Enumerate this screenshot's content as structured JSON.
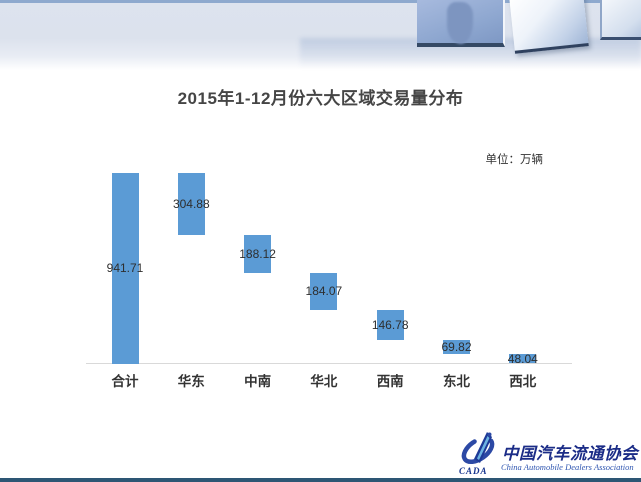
{
  "slide": {
    "title": "2015年1-12月份六大区域交易量分布",
    "unit_label": "单位：万辆"
  },
  "chart_data": {
    "type": "bar",
    "subtype": "waterfall",
    "title": "2015年1-12月份六大区域交易量分布",
    "unit": "万辆",
    "categories": [
      "合计",
      "华东",
      "中南",
      "华北",
      "西南",
      "东北",
      "西北"
    ],
    "values": [
      941.71,
      304.88,
      188.12,
      184.07,
      146.78,
      69.82,
      48.04
    ],
    "value_labels": [
      "941.71",
      "304.88",
      "188.12",
      "184.07",
      "146.78",
      "69.82",
      "48.04"
    ],
    "ylim": [
      0,
      941.71
    ],
    "grid": false,
    "legend": false,
    "bar_color": "#5B9BD5",
    "layout_note": "first bar is the total rising from the baseline; each regional bar floats, stepping down from the total like a descending waterfall"
  },
  "footer": {
    "logo_cn": "中国汽车流通协会",
    "logo_en": "China Automobile Dealers Association",
    "logo_abbr": "CADA"
  },
  "colors": {
    "bar": "#5B9BD5",
    "title_text": "#454545",
    "value_label_text": "#2e2e2e",
    "category_label_text": "#333333",
    "axis_line": "#d9d9d9",
    "banner_background": "#dce2ed",
    "banner_top_line": "#8ea9ce",
    "bottom_bar": "#2d5674",
    "logo_blue": "#1b2c87"
  }
}
